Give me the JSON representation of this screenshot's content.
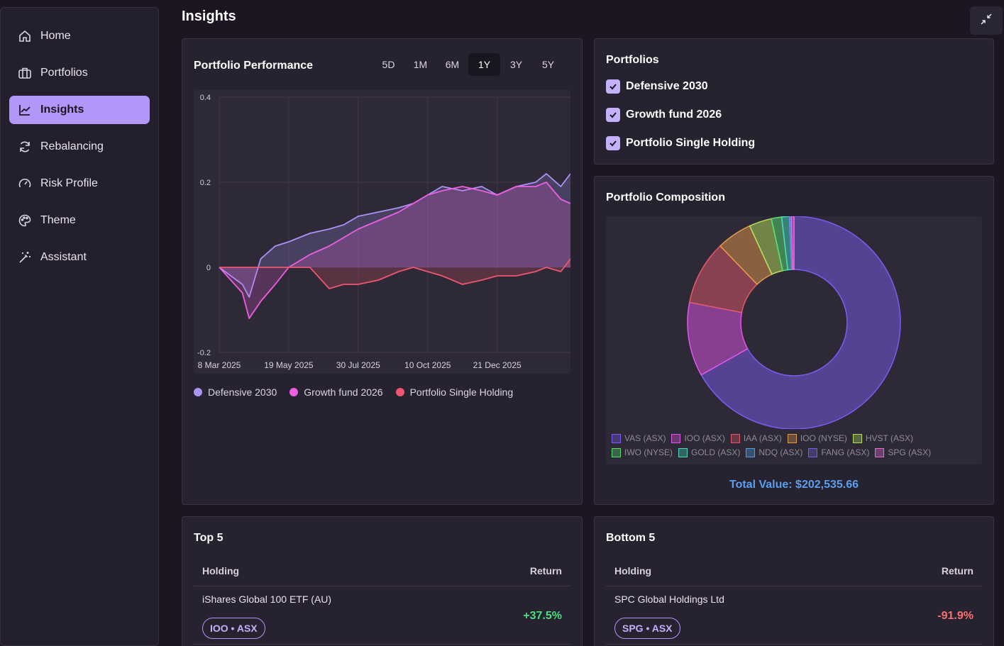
{
  "sidebar": {
    "items": [
      {
        "label": "Home",
        "icon": "home-icon"
      },
      {
        "label": "Portfolios",
        "icon": "briefcase-icon"
      },
      {
        "label": "Insights",
        "icon": "chart-line-icon",
        "active": true
      },
      {
        "label": "Rebalancing",
        "icon": "refresh-icon"
      },
      {
        "label": "Risk Profile",
        "icon": "gauge-icon"
      },
      {
        "label": "Theme",
        "icon": "palette-icon"
      },
      {
        "label": "Assistant",
        "icon": "magic-wand-icon"
      }
    ]
  },
  "header": {
    "title": "Insights"
  },
  "performance": {
    "title": "Portfolio Performance",
    "ranges": [
      "5D",
      "1M",
      "6M",
      "1Y",
      "3Y",
      "5Y"
    ],
    "active_range": "1Y"
  },
  "chart_data": {
    "type": "area",
    "x_tick_labels": [
      "8 Mar 2025",
      "19 May 2025",
      "30 Jul 2025",
      "10 Oct 2025",
      "21 Dec 2025"
    ],
    "y_tick_labels": [
      "0.4",
      "0.2",
      "0",
      "-0.2"
    ],
    "ylim": [
      -0.2,
      0.4
    ],
    "x_range": [
      "8 Mar 2025",
      "7 Mar 2026"
    ],
    "grid": true,
    "legend_position": "bottom-left",
    "series": [
      {
        "name": "Defensive 2030",
        "color": "#a993f5",
        "x": [
          "8 Mar 2025",
          "20 Mar 2025",
          "1 Apr 2025",
          "8 Apr 2025",
          "20 Apr 2025",
          "5 May 2025",
          "19 May 2025",
          "10 Jun 2025",
          "30 Jun 2025",
          "15 Jul 2025",
          "30 Jul 2025",
          "20 Aug 2025",
          "10 Sep 2025",
          "25 Sep 2025",
          "10 Oct 2025",
          "25 Oct 2025",
          "15 Nov 2025",
          "5 Dec 2025",
          "21 Dec 2025",
          "10 Jan 2026",
          "30 Jan 2026",
          "10 Feb 2026",
          "25 Feb 2026",
          "7 Mar 2026"
        ],
        "y": [
          0,
          -0.02,
          -0.04,
          -0.07,
          0.02,
          0.05,
          0.06,
          0.08,
          0.09,
          0.1,
          0.12,
          0.13,
          0.14,
          0.15,
          0.17,
          0.19,
          0.18,
          0.19,
          0.17,
          0.19,
          0.2,
          0.22,
          0.19,
          0.22
        ]
      },
      {
        "name": "Growth fund 2026",
        "color": "#ec5fe0",
        "x": [
          "8 Mar 2025",
          "20 Mar 2025",
          "1 Apr 2025",
          "8 Apr 2025",
          "20 Apr 2025",
          "5 May 2025",
          "19 May 2025",
          "10 Jun 2025",
          "30 Jun 2025",
          "15 Jul 2025",
          "30 Jul 2025",
          "20 Aug 2025",
          "10 Sep 2025",
          "25 Sep 2025",
          "10 Oct 2025",
          "25 Oct 2025",
          "15 Nov 2025",
          "5 Dec 2025",
          "21 Dec 2025",
          "10 Jan 2026",
          "30 Jan 2026",
          "10 Feb 2026",
          "25 Feb 2026",
          "7 Mar 2026"
        ],
        "y": [
          0,
          -0.03,
          -0.06,
          -0.12,
          -0.08,
          -0.04,
          0.0,
          0.03,
          0.05,
          0.07,
          0.09,
          0.11,
          0.13,
          0.15,
          0.17,
          0.18,
          0.19,
          0.18,
          0.17,
          0.19,
          0.19,
          0.2,
          0.16,
          0.15
        ]
      },
      {
        "name": "Portfolio Single Holding",
        "color": "#f0566f",
        "x": [
          "8 Mar 2025",
          "20 Mar 2025",
          "1 Apr 2025",
          "8 Apr 2025",
          "20 Apr 2025",
          "5 May 2025",
          "19 May 2025",
          "10 Jun 2025",
          "30 Jun 2025",
          "15 Jul 2025",
          "30 Jul 2025",
          "20 Aug 2025",
          "10 Sep 2025",
          "25 Sep 2025",
          "10 Oct 2025",
          "25 Oct 2025",
          "15 Nov 2025",
          "5 Dec 2025",
          "21 Dec 2025",
          "10 Jan 2026",
          "30 Jan 2026",
          "10 Feb 2026",
          "25 Feb 2026",
          "7 Mar 2026"
        ],
        "y": [
          0,
          0,
          0,
          0,
          0,
          0,
          0,
          0,
          -0.05,
          -0.04,
          -0.04,
          -0.03,
          -0.01,
          0.0,
          -0.01,
          -0.02,
          -0.04,
          -0.03,
          -0.02,
          -0.02,
          -0.01,
          0.0,
          -0.01,
          0.02
        ]
      }
    ]
  },
  "portfolios": {
    "title": "Portfolios",
    "items": [
      {
        "label": "Defensive 2030",
        "checked": true
      },
      {
        "label": "Growth fund 2026",
        "checked": true
      },
      {
        "label": "Portfolio Single Holding",
        "checked": true
      }
    ]
  },
  "composition": {
    "title": "Portfolio Composition",
    "total_value": "Total Value: $202,535.66",
    "chart_data": {
      "type": "pie",
      "donut": true,
      "legend_position": "bottom",
      "slices": [
        {
          "label": "VAS (ASX)",
          "value": 68.5,
          "color": "#7b5cf0"
        },
        {
          "label": "IOO (ASX)",
          "value": 11.5,
          "color": "#e056e8"
        },
        {
          "label": "IAA (ASX)",
          "value": 10.0,
          "color": "#e05a6a"
        },
        {
          "label": "IOO (NYSE)",
          "value": 5.5,
          "color": "#e39a4c"
        },
        {
          "label": "HVST (ASX)",
          "value": 3.5,
          "color": "#b6e05a"
        },
        {
          "label": "IWO (NYSE)",
          "value": 1.6,
          "color": "#57df72"
        },
        {
          "label": "GOLD (ASX)",
          "value": 1.2,
          "color": "#49d8bf"
        },
        {
          "label": "NDQ (ASX)",
          "value": 0.2,
          "color": "#4aa2e8"
        },
        {
          "label": "FANG (ASX)",
          "value": 0.1,
          "color": "#6f62e8"
        },
        {
          "label": "SPG (ASX)",
          "value": 0.4,
          "color": "#f06bd8"
        }
      ]
    }
  },
  "top5": {
    "title": "Top 5",
    "col_holding": "Holding",
    "col_return": "Return",
    "rows": [
      {
        "name": "iShares Global 100 ETF (AU)",
        "ticker": "IOO • ASX",
        "return": "+37.5%",
        "color": "#4ade80"
      }
    ]
  },
  "bottom5": {
    "title": "Bottom 5",
    "col_holding": "Holding",
    "col_return": "Return",
    "rows": [
      {
        "name": "SPC Global Holdings Ltd",
        "ticker": "SPG • ASX",
        "return": "-91.9%",
        "color": "#f87171"
      }
    ]
  }
}
